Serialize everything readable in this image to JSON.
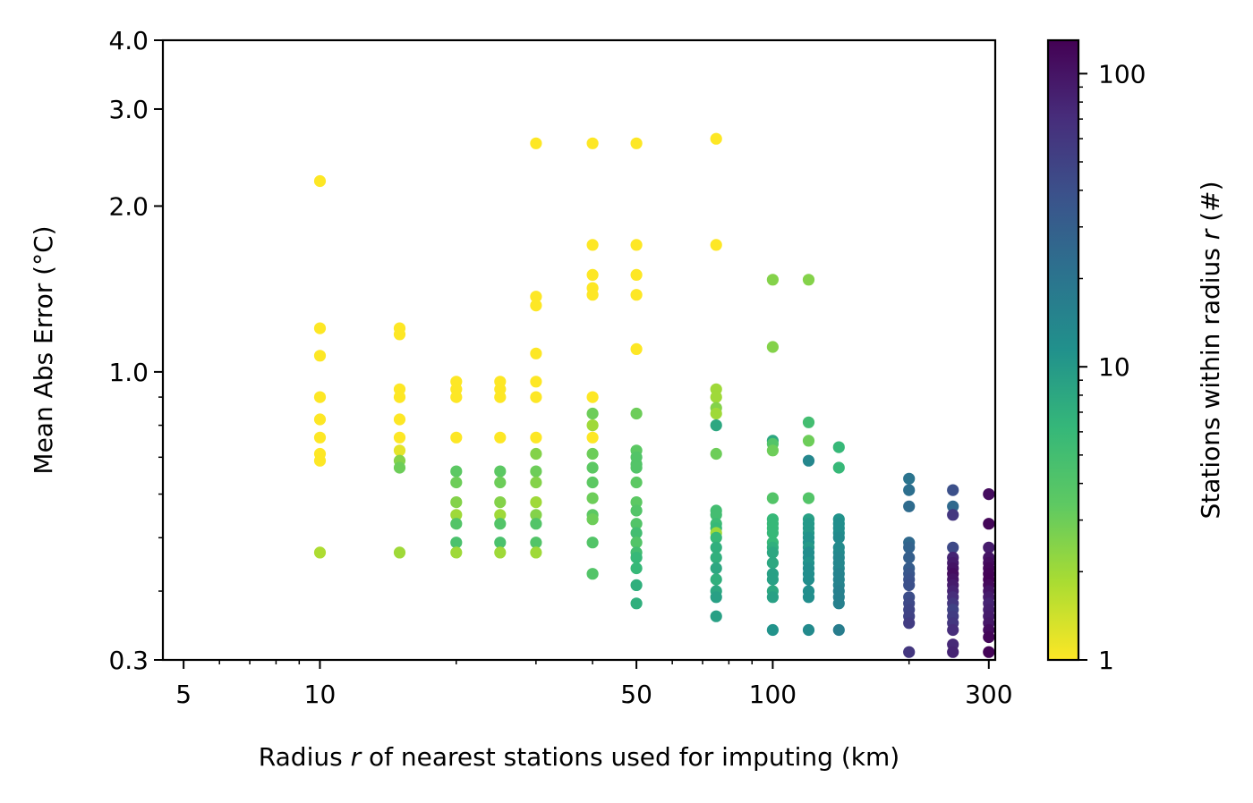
{
  "chart_data": {
    "type": "scatter",
    "title": "",
    "xlabel": {
      "before": "Radius ",
      "var": "r",
      "after": " of nearest stations used for imputing (km)"
    },
    "ylabel": "Mean Abs Error (°C)",
    "xscale": "log",
    "yscale": "log",
    "xlim": [
      4.5,
      310
    ],
    "ylim": [
      0.3,
      4.0
    ],
    "xticks": [
      {
        "value": 5,
        "label": "5"
      },
      {
        "value": 10,
        "label": "10"
      },
      {
        "value": 50,
        "label": "50"
      },
      {
        "value": 100,
        "label": "100"
      },
      {
        "value": 300,
        "label": "300"
      }
    ],
    "yticks": [
      {
        "value": 0.3,
        "label": "0.3"
      },
      {
        "value": 1.0,
        "label": "1.0"
      },
      {
        "value": 2.0,
        "label": "2.0"
      },
      {
        "value": 3.0,
        "label": "3.0"
      },
      {
        "value": 4.0,
        "label": "4.0"
      }
    ],
    "grid": false,
    "colorbar": {
      "label": {
        "before": "Stations within radius ",
        "var": "r",
        "after": " (#)"
      },
      "scale": "log",
      "range": [
        1,
        130
      ],
      "colormap": "viridis_r",
      "ticks": [
        {
          "value": 1,
          "label": "1"
        },
        {
          "value": 10,
          "label": "10"
        },
        {
          "value": 100,
          "label": "100"
        }
      ]
    },
    "points": [
      {
        "x": 10,
        "y": 2.22,
        "c": 1
      },
      {
        "x": 10,
        "y": 1.2,
        "c": 1
      },
      {
        "x": 10,
        "y": 1.07,
        "c": 1
      },
      {
        "x": 10,
        "y": 0.9,
        "c": 1
      },
      {
        "x": 10,
        "y": 0.82,
        "c": 1
      },
      {
        "x": 10,
        "y": 0.76,
        "c": 1
      },
      {
        "x": 10,
        "y": 0.71,
        "c": 1
      },
      {
        "x": 10,
        "y": 0.69,
        "c": 1
      },
      {
        "x": 10,
        "y": 0.47,
        "c": 1.8
      },
      {
        "x": 15,
        "y": 1.2,
        "c": 1
      },
      {
        "x": 15,
        "y": 1.17,
        "c": 1
      },
      {
        "x": 15,
        "y": 0.93,
        "c": 1
      },
      {
        "x": 15,
        "y": 0.9,
        "c": 1
      },
      {
        "x": 15,
        "y": 0.82,
        "c": 1
      },
      {
        "x": 15,
        "y": 0.76,
        "c": 1
      },
      {
        "x": 15,
        "y": 0.72,
        "c": 1.2
      },
      {
        "x": 15,
        "y": 0.69,
        "c": 2.5
      },
      {
        "x": 15,
        "y": 0.67,
        "c": 3
      },
      {
        "x": 15,
        "y": 0.47,
        "c": 2
      },
      {
        "x": 20,
        "y": 0.96,
        "c": 1
      },
      {
        "x": 20,
        "y": 0.93,
        "c": 1
      },
      {
        "x": 20,
        "y": 0.9,
        "c": 1
      },
      {
        "x": 20,
        "y": 0.76,
        "c": 1
      },
      {
        "x": 20,
        "y": 0.66,
        "c": 3.5
      },
      {
        "x": 20,
        "y": 0.63,
        "c": 3
      },
      {
        "x": 20,
        "y": 0.58,
        "c": 2.5
      },
      {
        "x": 20,
        "y": 0.55,
        "c": 2
      },
      {
        "x": 20,
        "y": 0.53,
        "c": 4
      },
      {
        "x": 20,
        "y": 0.49,
        "c": 4.5
      },
      {
        "x": 20,
        "y": 0.47,
        "c": 2
      },
      {
        "x": 25,
        "y": 0.96,
        "c": 1
      },
      {
        "x": 25,
        "y": 0.93,
        "c": 1
      },
      {
        "x": 25,
        "y": 0.9,
        "c": 1
      },
      {
        "x": 25,
        "y": 0.76,
        "c": 1
      },
      {
        "x": 25,
        "y": 0.66,
        "c": 3.5
      },
      {
        "x": 25,
        "y": 0.63,
        "c": 3
      },
      {
        "x": 25,
        "y": 0.58,
        "c": 2.5
      },
      {
        "x": 25,
        "y": 0.55,
        "c": 2
      },
      {
        "x": 25,
        "y": 0.53,
        "c": 4
      },
      {
        "x": 25,
        "y": 0.49,
        "c": 4.5
      },
      {
        "x": 25,
        "y": 0.47,
        "c": 2
      },
      {
        "x": 30,
        "y": 2.6,
        "c": 1
      },
      {
        "x": 30,
        "y": 1.37,
        "c": 1
      },
      {
        "x": 30,
        "y": 1.32,
        "c": 1
      },
      {
        "x": 30,
        "y": 1.08,
        "c": 1
      },
      {
        "x": 30,
        "y": 0.96,
        "c": 1
      },
      {
        "x": 30,
        "y": 0.9,
        "c": 1
      },
      {
        "x": 30,
        "y": 0.76,
        "c": 1
      },
      {
        "x": 30,
        "y": 0.71,
        "c": 2.5
      },
      {
        "x": 30,
        "y": 0.66,
        "c": 3
      },
      {
        "x": 30,
        "y": 0.63,
        "c": 2.5
      },
      {
        "x": 30,
        "y": 0.58,
        "c": 2
      },
      {
        "x": 30,
        "y": 0.55,
        "c": 2.5
      },
      {
        "x": 30,
        "y": 0.53,
        "c": 4
      },
      {
        "x": 30,
        "y": 0.49,
        "c": 4
      },
      {
        "x": 30,
        "y": 0.47,
        "c": 2
      },
      {
        "x": 40,
        "y": 2.6,
        "c": 1
      },
      {
        "x": 40,
        "y": 1.7,
        "c": 1
      },
      {
        "x": 40,
        "y": 1.5,
        "c": 1
      },
      {
        "x": 40,
        "y": 1.42,
        "c": 1
      },
      {
        "x": 40,
        "y": 1.38,
        "c": 1
      },
      {
        "x": 40,
        "y": 0.9,
        "c": 1
      },
      {
        "x": 40,
        "y": 0.84,
        "c": 3
      },
      {
        "x": 40,
        "y": 0.8,
        "c": 2
      },
      {
        "x": 40,
        "y": 0.76,
        "c": 1
      },
      {
        "x": 40,
        "y": 0.71,
        "c": 3
      },
      {
        "x": 40,
        "y": 0.67,
        "c": 3.5
      },
      {
        "x": 40,
        "y": 0.63,
        "c": 3.5
      },
      {
        "x": 40,
        "y": 0.59,
        "c": 3
      },
      {
        "x": 40,
        "y": 0.55,
        "c": 3.5
      },
      {
        "x": 40,
        "y": 0.54,
        "c": 3
      },
      {
        "x": 40,
        "y": 0.49,
        "c": 4
      },
      {
        "x": 40,
        "y": 0.43,
        "c": 4
      },
      {
        "x": 50,
        "y": 2.6,
        "c": 1
      },
      {
        "x": 50,
        "y": 1.7,
        "c": 1
      },
      {
        "x": 50,
        "y": 1.5,
        "c": 1
      },
      {
        "x": 50,
        "y": 1.38,
        "c": 1
      },
      {
        "x": 50,
        "y": 1.1,
        "c": 1
      },
      {
        "x": 50,
        "y": 0.84,
        "c": 3
      },
      {
        "x": 50,
        "y": 0.72,
        "c": 3.5
      },
      {
        "x": 50,
        "y": 0.7,
        "c": 4
      },
      {
        "x": 50,
        "y": 0.68,
        "c": 4
      },
      {
        "x": 50,
        "y": 0.67,
        "c": 4
      },
      {
        "x": 50,
        "y": 0.63,
        "c": 3.5
      },
      {
        "x": 50,
        "y": 0.58,
        "c": 3.5
      },
      {
        "x": 50,
        "y": 0.56,
        "c": 4
      },
      {
        "x": 50,
        "y": 0.53,
        "c": 4
      },
      {
        "x": 50,
        "y": 0.51,
        "c": 5
      },
      {
        "x": 50,
        "y": 0.49,
        "c": 4
      },
      {
        "x": 50,
        "y": 0.47,
        "c": 5
      },
      {
        "x": 50,
        "y": 0.46,
        "c": 6
      },
      {
        "x": 50,
        "y": 0.44,
        "c": 6
      },
      {
        "x": 50,
        "y": 0.41,
        "c": 7
      },
      {
        "x": 50,
        "y": 0.38,
        "c": 7
      },
      {
        "x": 75,
        "y": 2.65,
        "c": 1
      },
      {
        "x": 75,
        "y": 1.7,
        "c": 1
      },
      {
        "x": 75,
        "y": 0.93,
        "c": 2
      },
      {
        "x": 75,
        "y": 0.9,
        "c": 2
      },
      {
        "x": 75,
        "y": 0.86,
        "c": 2.5
      },
      {
        "x": 75,
        "y": 0.84,
        "c": 2
      },
      {
        "x": 75,
        "y": 0.8,
        "c": 8
      },
      {
        "x": 75,
        "y": 0.71,
        "c": 3
      },
      {
        "x": 75,
        "y": 0.56,
        "c": 5
      },
      {
        "x": 75,
        "y": 0.55,
        "c": 5
      },
      {
        "x": 75,
        "y": 0.53,
        "c": 5.5
      },
      {
        "x": 75,
        "y": 0.52,
        "c": 6
      },
      {
        "x": 75,
        "y": 0.51,
        "c": 2
      },
      {
        "x": 75,
        "y": 0.5,
        "c": 6
      },
      {
        "x": 75,
        "y": 0.48,
        "c": 7
      },
      {
        "x": 75,
        "y": 0.46,
        "c": 7
      },
      {
        "x": 75,
        "y": 0.44,
        "c": 8
      },
      {
        "x": 75,
        "y": 0.42,
        "c": 7
      },
      {
        "x": 75,
        "y": 0.4,
        "c": 8
      },
      {
        "x": 75,
        "y": 0.39,
        "c": 9
      },
      {
        "x": 75,
        "y": 0.36,
        "c": 9
      },
      {
        "x": 100,
        "y": 1.47,
        "c": 2.5
      },
      {
        "x": 100,
        "y": 1.11,
        "c": 2.5
      },
      {
        "x": 100,
        "y": 0.75,
        "c": 8
      },
      {
        "x": 100,
        "y": 0.74,
        "c": 4
      },
      {
        "x": 100,
        "y": 0.72,
        "c": 3
      },
      {
        "x": 100,
        "y": 0.59,
        "c": 4
      },
      {
        "x": 100,
        "y": 0.54,
        "c": 6
      },
      {
        "x": 100,
        "y": 0.53,
        "c": 6
      },
      {
        "x": 100,
        "y": 0.52,
        "c": 6
      },
      {
        "x": 100,
        "y": 0.51,
        "c": 6
      },
      {
        "x": 100,
        "y": 0.49,
        "c": 6
      },
      {
        "x": 100,
        "y": 0.48,
        "c": 7
      },
      {
        "x": 100,
        "y": 0.47,
        "c": 8
      },
      {
        "x": 100,
        "y": 0.45,
        "c": 8
      },
      {
        "x": 100,
        "y": 0.43,
        "c": 9
      },
      {
        "x": 100,
        "y": 0.42,
        "c": 9
      },
      {
        "x": 100,
        "y": 0.4,
        "c": 8
      },
      {
        "x": 100,
        "y": 0.39,
        "c": 9
      },
      {
        "x": 100,
        "y": 0.34,
        "c": 11
      },
      {
        "x": 120,
        "y": 1.47,
        "c": 2.5
      },
      {
        "x": 120,
        "y": 0.81,
        "c": 5
      },
      {
        "x": 120,
        "y": 0.75,
        "c": 3
      },
      {
        "x": 120,
        "y": 0.69,
        "c": 14
      },
      {
        "x": 120,
        "y": 0.59,
        "c": 4
      },
      {
        "x": 120,
        "y": 0.54,
        "c": 9
      },
      {
        "x": 120,
        "y": 0.53,
        "c": 10
      },
      {
        "x": 120,
        "y": 0.52,
        "c": 10
      },
      {
        "x": 120,
        "y": 0.51,
        "c": 10
      },
      {
        "x": 120,
        "y": 0.5,
        "c": 11
      },
      {
        "x": 120,
        "y": 0.49,
        "c": 11
      },
      {
        "x": 120,
        "y": 0.48,
        "c": 10
      },
      {
        "x": 120,
        "y": 0.47,
        "c": 12
      },
      {
        "x": 120,
        "y": 0.46,
        "c": 12
      },
      {
        "x": 120,
        "y": 0.45,
        "c": 11
      },
      {
        "x": 120,
        "y": 0.44,
        "c": 12
      },
      {
        "x": 120,
        "y": 0.43,
        "c": 12
      },
      {
        "x": 120,
        "y": 0.42,
        "c": 12
      },
      {
        "x": 120,
        "y": 0.4,
        "c": 12
      },
      {
        "x": 120,
        "y": 0.39,
        "c": 12
      },
      {
        "x": 120,
        "y": 0.34,
        "c": 13
      },
      {
        "x": 140,
        "y": 0.73,
        "c": 6
      },
      {
        "x": 140,
        "y": 0.67,
        "c": 6
      },
      {
        "x": 140,
        "y": 0.54,
        "c": 11
      },
      {
        "x": 140,
        "y": 0.53,
        "c": 12
      },
      {
        "x": 140,
        "y": 0.52,
        "c": 12
      },
      {
        "x": 140,
        "y": 0.51,
        "c": 12
      },
      {
        "x": 140,
        "y": 0.5,
        "c": 13
      },
      {
        "x": 140,
        "y": 0.48,
        "c": 13
      },
      {
        "x": 140,
        "y": 0.47,
        "c": 13
      },
      {
        "x": 140,
        "y": 0.46,
        "c": 14
      },
      {
        "x": 140,
        "y": 0.45,
        "c": 14
      },
      {
        "x": 140,
        "y": 0.44,
        "c": 14
      },
      {
        "x": 140,
        "y": 0.43,
        "c": 15
      },
      {
        "x": 140,
        "y": 0.42,
        "c": 15
      },
      {
        "x": 140,
        "y": 0.41,
        "c": 15
      },
      {
        "x": 140,
        "y": 0.4,
        "c": 16
      },
      {
        "x": 140,
        "y": 0.39,
        "c": 16
      },
      {
        "x": 140,
        "y": 0.38,
        "c": 16
      },
      {
        "x": 140,
        "y": 0.34,
        "c": 17
      },
      {
        "x": 200,
        "y": 0.64,
        "c": 20
      },
      {
        "x": 200,
        "y": 0.61,
        "c": 22
      },
      {
        "x": 200,
        "y": 0.57,
        "c": 24
      },
      {
        "x": 200,
        "y": 0.49,
        "c": 25
      },
      {
        "x": 200,
        "y": 0.48,
        "c": 28
      },
      {
        "x": 200,
        "y": 0.46,
        "c": 30
      },
      {
        "x": 200,
        "y": 0.44,
        "c": 32
      },
      {
        "x": 200,
        "y": 0.43,
        "c": 35
      },
      {
        "x": 200,
        "y": 0.42,
        "c": 38
      },
      {
        "x": 200,
        "y": 0.41,
        "c": 40
      },
      {
        "x": 200,
        "y": 0.39,
        "c": 42
      },
      {
        "x": 200,
        "y": 0.38,
        "c": 45
      },
      {
        "x": 200,
        "y": 0.37,
        "c": 48
      },
      {
        "x": 200,
        "y": 0.36,
        "c": 50
      },
      {
        "x": 200,
        "y": 0.35,
        "c": 55
      },
      {
        "x": 200,
        "y": 0.31,
        "c": 60
      },
      {
        "x": 250,
        "y": 0.61,
        "c": 40
      },
      {
        "x": 250,
        "y": 0.57,
        "c": 25
      },
      {
        "x": 250,
        "y": 0.55,
        "c": 60
      },
      {
        "x": 250,
        "y": 0.48,
        "c": 45
      },
      {
        "x": 250,
        "y": 0.46,
        "c": 80
      },
      {
        "x": 250,
        "y": 0.45,
        "c": 90
      },
      {
        "x": 250,
        "y": 0.44,
        "c": 100
      },
      {
        "x": 250,
        "y": 0.43,
        "c": 110
      },
      {
        "x": 250,
        "y": 0.42,
        "c": 100
      },
      {
        "x": 250,
        "y": 0.41,
        "c": 90
      },
      {
        "x": 250,
        "y": 0.4,
        "c": 80
      },
      {
        "x": 250,
        "y": 0.39,
        "c": 70
      },
      {
        "x": 250,
        "y": 0.38,
        "c": 60
      },
      {
        "x": 250,
        "y": 0.37,
        "c": 50
      },
      {
        "x": 250,
        "y": 0.36,
        "c": 55
      },
      {
        "x": 250,
        "y": 0.35,
        "c": 60
      },
      {
        "x": 250,
        "y": 0.34,
        "c": 70
      },
      {
        "x": 250,
        "y": 0.32,
        "c": 75
      },
      {
        "x": 250,
        "y": 0.31,
        "c": 80
      },
      {
        "x": 300,
        "y": 0.6,
        "c": 110
      },
      {
        "x": 300,
        "y": 0.53,
        "c": 120
      },
      {
        "x": 300,
        "y": 0.48,
        "c": 90
      },
      {
        "x": 300,
        "y": 0.46,
        "c": 100
      },
      {
        "x": 300,
        "y": 0.45,
        "c": 110
      },
      {
        "x": 300,
        "y": 0.44,
        "c": 120
      },
      {
        "x": 300,
        "y": 0.43,
        "c": 125
      },
      {
        "x": 300,
        "y": 0.42,
        "c": 128
      },
      {
        "x": 300,
        "y": 0.41,
        "c": 115
      },
      {
        "x": 300,
        "y": 0.4,
        "c": 100
      },
      {
        "x": 300,
        "y": 0.39,
        "c": 90
      },
      {
        "x": 300,
        "y": 0.38,
        "c": 80
      },
      {
        "x": 300,
        "y": 0.37,
        "c": 85
      },
      {
        "x": 300,
        "y": 0.36,
        "c": 90
      },
      {
        "x": 300,
        "y": 0.35,
        "c": 95
      },
      {
        "x": 300,
        "y": 0.34,
        "c": 110
      },
      {
        "x": 300,
        "y": 0.33,
        "c": 120
      },
      {
        "x": 300,
        "y": 0.31,
        "c": 125
      }
    ]
  }
}
